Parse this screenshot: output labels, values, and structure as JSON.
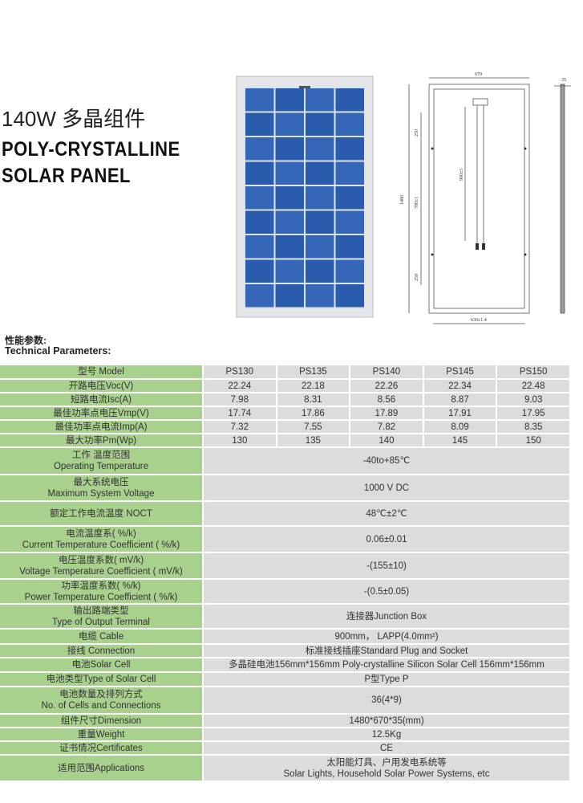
{
  "header": {
    "title_cn": "140W 多晶组件",
    "title_en_line1": "POLY-CRYSTALLINE",
    "title_en_line2": "SOLAR PANEL"
  },
  "drawing": {
    "width_label": "670",
    "height_label": "1480",
    "thickness_label": "35",
    "hole_spacing_label": "250",
    "mount_span_label": "780±1",
    "cable_label": "900±5",
    "bottom_label": "630±1.4"
  },
  "section": {
    "title_cn": "性能参数:",
    "title_en": "Technical Parameters:"
  },
  "colors": {
    "label_bg": "#a9d18e",
    "value_bg": "#dcdcdc",
    "cell_blue": "#2e5fb0"
  },
  "table": {
    "model_row": {
      "label": "型号 Model",
      "values": [
        "PS130",
        "PS135",
        "PS140",
        "PS145",
        "PS150"
      ]
    },
    "multi_rows": [
      {
        "label": "开路电压Voc(V)",
        "values": [
          "22.24",
          "22.18",
          "22.26",
          "22.34",
          "22.48"
        ]
      },
      {
        "label": "短路电流Isc(A)",
        "values": [
          "7.98",
          "8.31",
          "8.56",
          "8.87",
          "9.03"
        ]
      },
      {
        "label": "最佳功率点电压Vmp(V)",
        "values": [
          "17.74",
          "17.86",
          "17.89",
          "17.91",
          "17.95"
        ]
      },
      {
        "label": "最佳功率点电流Imp(A)",
        "values": [
          "7.32",
          "7.55",
          "7.82",
          "8.09",
          "8.35"
        ]
      },
      {
        "label": "最大功率Pm(Wp)",
        "values": [
          "130",
          "135",
          "140",
          "145",
          "150"
        ]
      }
    ],
    "single_rows": [
      {
        "label_cn": "工作 温度范围",
        "label_en": "Operating Temperature",
        "value": "-40to+85℃"
      },
      {
        "label_cn": "最大系统电压",
        "label_en": "Maximum System Voltage",
        "value": "1000 V DC"
      },
      {
        "label_cn": "额定工作电流温度 NOCT",
        "label_en": "",
        "value": "48℃±2℃"
      },
      {
        "label_cn": "电流温度系( %/k)",
        "label_en": "Current Temperature Coefficient ( %/k)",
        "value": "0.06±0.01"
      },
      {
        "label_cn": "电压温度系数( mV/k)",
        "label_en": "Voltage Temperature Coefficient ( mV/k)",
        "value": "-(155±10)"
      },
      {
        "label_cn": "功率温度系数( %/k)",
        "label_en": "Power Temperature Coefficient ( %/k)",
        "value": "-(0.5±0.05)"
      },
      {
        "label_cn": "输出路端类型",
        "label_en": "Type of Output Terminal",
        "value": "连接器Junction Box"
      },
      {
        "label_cn": "电缆 Cable",
        "label_en": "",
        "value": "900mm， LAPP(4.0mm²)"
      },
      {
        "label_cn": "接线 Connection",
        "label_en": "",
        "value": "标准接线插座Standard Plug and Socket"
      },
      {
        "label_cn": "电池Solar Cell",
        "label_en": "",
        "value": "多晶硅电池156mm*156mm Poly-crystalline Silicon Solar Cell 156mm*156mm"
      },
      {
        "label_cn": "电池类型Type of Solar Cell",
        "label_en": "",
        "value": "P型Type P"
      },
      {
        "label_cn": "电池数量及排列方式",
        "label_en": "No. of Cells and Connections",
        "value": "36(4*9)"
      },
      {
        "label_cn": "组件尺寸Dimension",
        "label_en": "",
        "value": "1480*670*35(mm)"
      },
      {
        "label_cn": "重量Weight",
        "label_en": "",
        "value": "12.5Kg"
      },
      {
        "label_cn": "证书情况Certificates",
        "label_en": "",
        "value": "CE"
      },
      {
        "label_cn": "适用范围Applications",
        "label_en": "",
        "value": "太阳能灯具、户用发电系统等",
        "value2": "Solar Lights, Household Solar Power Systems, etc"
      }
    ]
  }
}
